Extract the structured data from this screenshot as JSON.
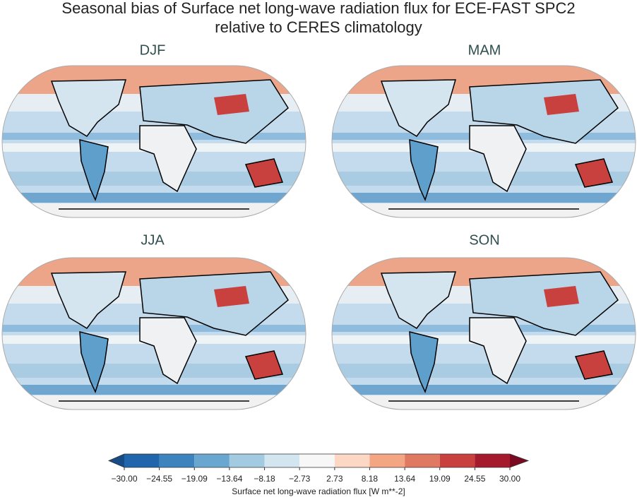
{
  "title": [
    "Seasonal bias of Surface net long-wave radiation flux for ECE-FAST SPC2",
    "relative to CERES climatology"
  ],
  "panels": [
    {
      "title": "DJF"
    },
    {
      "title": "MAM"
    },
    {
      "title": "JJA"
    },
    {
      "title": "SON"
    }
  ],
  "colorbar": {
    "ticks": [
      {
        "value": -30,
        "label": "−30.00"
      },
      {
        "value": -24.55,
        "label": "−24.55"
      },
      {
        "value": -19.09,
        "label": "−19.09"
      },
      {
        "value": -13.64,
        "label": "−13.64"
      },
      {
        "value": -8.18,
        "label": "−8.18"
      },
      {
        "value": -2.73,
        "label": "−2.73"
      },
      2.73,
      8.18,
      13.64,
      19.09,
      24.55,
      {
        "value": 30,
        "label": "30.00"
      }
    ],
    "colors": [
      "#2166ac",
      "#3d84bf",
      "#6aa7d0",
      "#a2cbe2",
      "#d3e6f0",
      "#f7f7f7",
      "#fbd7c4",
      "#f4a683",
      "#e07962",
      "#c8413f",
      "#a51a2d"
    ],
    "under_color": "#174b85",
    "over_color": "#7a0a22",
    "label": "Surface net long-wave radiation flux [W m**-2]"
  }
}
